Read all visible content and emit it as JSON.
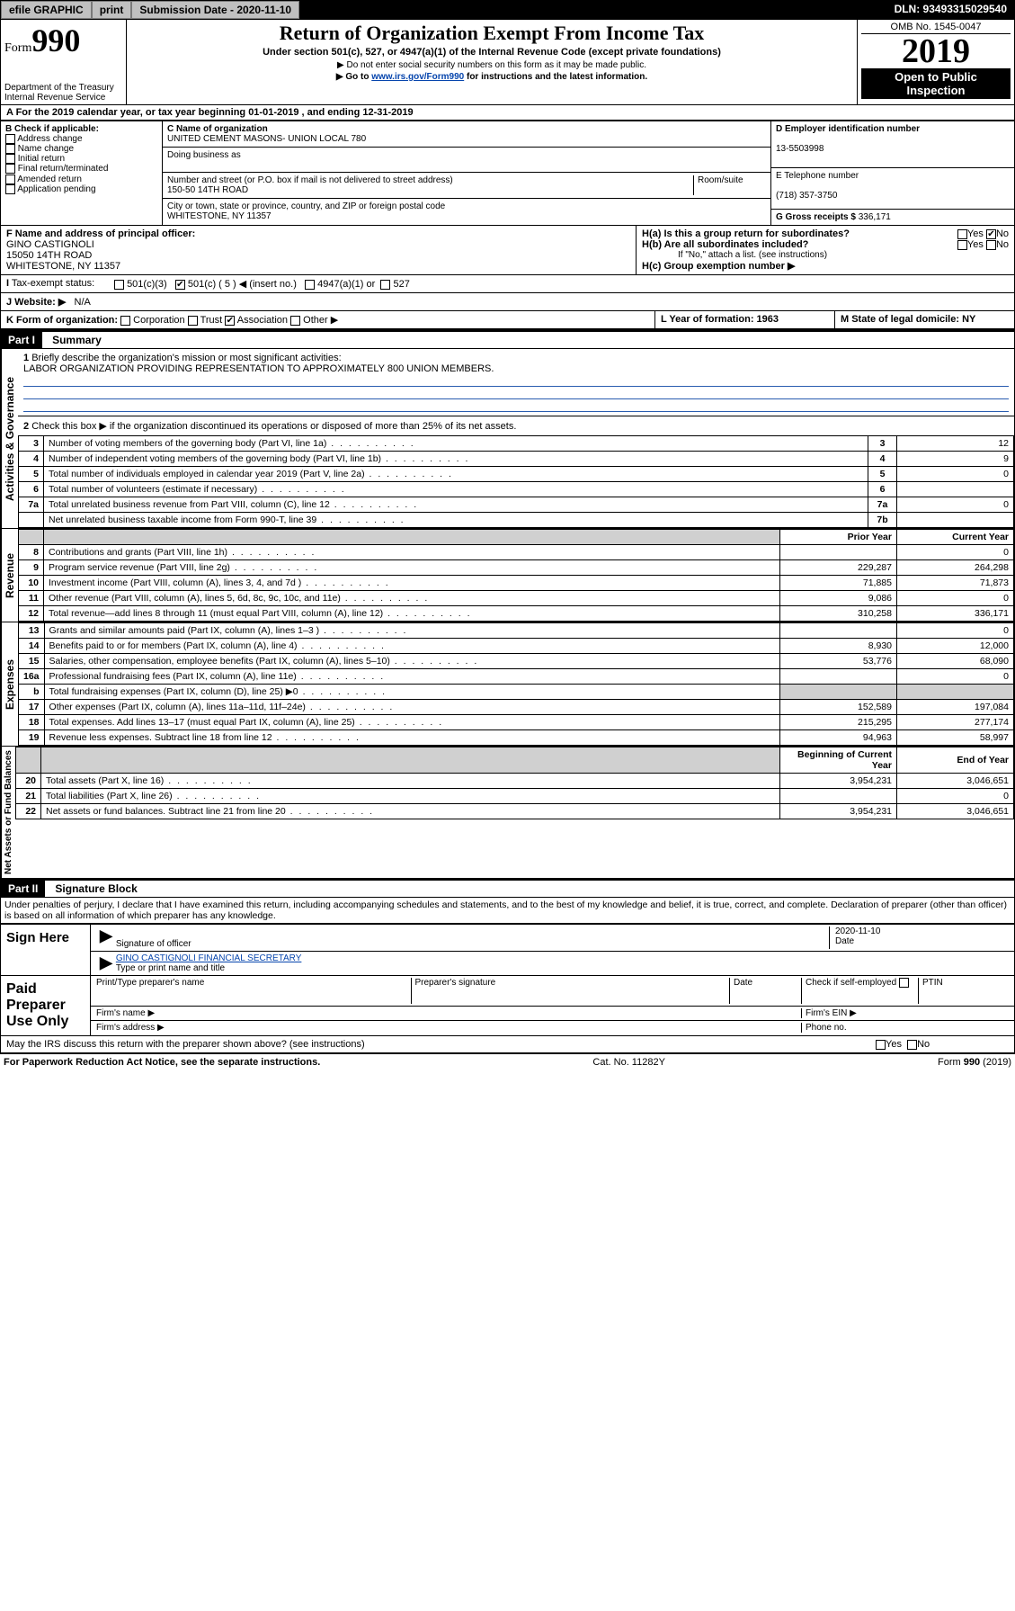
{
  "topbar": {
    "efile": "efile GRAPHIC",
    "print": "print",
    "submission_label": "Submission Date - 2020-11-10",
    "dln": "DLN: 93493315029540"
  },
  "header": {
    "form_prefix": "Form",
    "form_number": "990",
    "title": "Return of Organization Exempt From Income Tax",
    "subtitle": "Under section 501(c), 527, or 4947(a)(1) of the Internal Revenue Code (except private foundations)",
    "note1": "▶ Do not enter social security numbers on this form as it may be made public.",
    "note2_pre": "▶ Go to ",
    "note2_link": "www.irs.gov/Form990",
    "note2_post": " for instructions and the latest information.",
    "dept1": "Department of the Treasury",
    "dept2": "Internal Revenue Service",
    "omb": "OMB No. 1545-0047",
    "year": "2019",
    "open1": "Open to Public",
    "open2": "Inspection"
  },
  "bandA": "A   For the 2019 calendar year, or tax year beginning 01-01-2019     , and ending 12-31-2019",
  "B": {
    "hdr": "B Check if applicable:",
    "items": [
      "Address change",
      "Name change",
      "Initial return",
      "Final return/terminated",
      "Amended return",
      "Application pending"
    ]
  },
  "C": {
    "name_lbl": "C Name of organization",
    "name": "UNITED CEMENT MASONS- UNION LOCAL 780",
    "dba_lbl": "Doing business as",
    "addr_lbl": "Number and street (or P.O. box if mail is not delivered to street address)",
    "room_lbl": "Room/suite",
    "addr": "150-50 14TH ROAD",
    "city_lbl": "City or town, state or province, country, and ZIP or foreign postal code",
    "city": "WHITESTONE, NY  11357"
  },
  "D": {
    "lbl": "D Employer identification number",
    "val": "13-5503998"
  },
  "E": {
    "lbl": "E Telephone number",
    "val": "(718) 357-3750"
  },
  "G": {
    "lbl": "G Gross receipts $",
    "val": "336,171"
  },
  "F": {
    "lbl": "F  Name and address of principal officer:",
    "name": "GINO CASTIGNOLI",
    "addr1": "15050 14TH ROAD",
    "addr2": "WHITESTONE, NY  11357"
  },
  "H": {
    "a": "H(a)  Is this a group return for subordinates?",
    "b": "H(b)  Are all subordinates included?",
    "b_note": "If \"No,\" attach a list. (see instructions)",
    "c": "H(c)  Group exemption number ▶",
    "yes": "Yes",
    "no": "No"
  },
  "I": {
    "lbl": "Tax-exempt status:",
    "a": "501(c)(3)",
    "b": "501(c) ( 5 ) ◀ (insert no.)",
    "c": "4947(a)(1) or",
    "d": "527"
  },
  "J": {
    "lbl": "J    Website: ▶",
    "val": "N/A"
  },
  "K": {
    "lbl": "K Form of organization:",
    "opts": [
      "Corporation",
      "Trust",
      "Association",
      "Other ▶"
    ],
    "checked_idx": 2,
    "L": "L Year of formation: 1963",
    "M": "M State of legal domicile: NY"
  },
  "part1": {
    "hdr": "Part I",
    "title": "Summary",
    "tab_gov": "Activities & Governance",
    "tab_rev": "Revenue",
    "tab_exp": "Expenses",
    "tab_net": "Net Assets or Fund Balances",
    "line1_lbl": "Briefly describe the organization's mission or most significant activities:",
    "line1_val": "LABOR ORGANIZATION PROVIDING REPRESENTATION TO APPROXIMATELY 800 UNION MEMBERS.",
    "line2": "Check this box ▶   if the organization discontinued its operations or disposed of more than 25% of its net assets.",
    "rows_gov": [
      {
        "n": "3",
        "d": "Number of voting members of the governing body (Part VI, line 1a)",
        "b": "3",
        "v": "12"
      },
      {
        "n": "4",
        "d": "Number of independent voting members of the governing body (Part VI, line 1b)",
        "b": "4",
        "v": "9"
      },
      {
        "n": "5",
        "d": "Total number of individuals employed in calendar year 2019 (Part V, line 2a)",
        "b": "5",
        "v": "0"
      },
      {
        "n": "6",
        "d": "Total number of volunteers (estimate if necessary)",
        "b": "6",
        "v": ""
      },
      {
        "n": "7a",
        "d": "Total unrelated business revenue from Part VIII, column (C), line 12",
        "b": "7a",
        "v": "0"
      },
      {
        "n": "",
        "d": "Net unrelated business taxable income from Form 990-T, line 39",
        "b": "7b",
        "v": ""
      }
    ],
    "col_prior": "Prior Year",
    "col_curr": "Current Year",
    "rows_rev": [
      {
        "n": "8",
        "d": "Contributions and grants (Part VIII, line 1h)",
        "p": "",
        "c": "0"
      },
      {
        "n": "9",
        "d": "Program service revenue (Part VIII, line 2g)",
        "p": "229,287",
        "c": "264,298"
      },
      {
        "n": "10",
        "d": "Investment income (Part VIII, column (A), lines 3, 4, and 7d )",
        "p": "71,885",
        "c": "71,873"
      },
      {
        "n": "11",
        "d": "Other revenue (Part VIII, column (A), lines 5, 6d, 8c, 9c, 10c, and 11e)",
        "p": "9,086",
        "c": "0"
      },
      {
        "n": "12",
        "d": "Total revenue—add lines 8 through 11 (must equal Part VIII, column (A), line 12)",
        "p": "310,258",
        "c": "336,171"
      }
    ],
    "rows_exp": [
      {
        "n": "13",
        "d": "Grants and similar amounts paid (Part IX, column (A), lines 1–3 )",
        "p": "",
        "c": "0"
      },
      {
        "n": "14",
        "d": "Benefits paid to or for members (Part IX, column (A), line 4)",
        "p": "8,930",
        "c": "12,000"
      },
      {
        "n": "15",
        "d": "Salaries, other compensation, employee benefits (Part IX, column (A), lines 5–10)",
        "p": "53,776",
        "c": "68,090"
      },
      {
        "n": "16a",
        "d": "Professional fundraising fees (Part IX, column (A), line 11e)",
        "p": "",
        "c": "0"
      },
      {
        "n": "b",
        "d": "Total fundraising expenses (Part IX, column (D), line 25) ▶0",
        "p": "shade",
        "c": "shade"
      },
      {
        "n": "17",
        "d": "Other expenses (Part IX, column (A), lines 11a–11d, 11f–24e)",
        "p": "152,589",
        "c": "197,084"
      },
      {
        "n": "18",
        "d": "Total expenses. Add lines 13–17 (must equal Part IX, column (A), line 25)",
        "p": "215,295",
        "c": "277,174"
      },
      {
        "n": "19",
        "d": "Revenue less expenses. Subtract line 18 from line 12",
        "p": "94,963",
        "c": "58,997"
      }
    ],
    "col_beg": "Beginning of Current Year",
    "col_end": "End of Year",
    "rows_net": [
      {
        "n": "20",
        "d": "Total assets (Part X, line 16)",
        "p": "3,954,231",
        "c": "3,046,651"
      },
      {
        "n": "21",
        "d": "Total liabilities (Part X, line 26)",
        "p": "",
        "c": "0"
      },
      {
        "n": "22",
        "d": "Net assets or fund balances. Subtract line 21 from line 20",
        "p": "3,954,231",
        "c": "3,046,651"
      }
    ]
  },
  "part2": {
    "hdr": "Part II",
    "title": "Signature Block",
    "perjury": "Under penalties of perjury, I declare that I have examined this return, including accompanying schedules and statements, and to the best of my knowledge and belief, it is true, correct, and complete. Declaration of preparer (other than officer) is based on all information of which preparer has any knowledge.",
    "sign_here": "Sign Here",
    "sig_officer": "Signature of officer",
    "sig_date": "2020-11-10",
    "date_lbl": "Date",
    "officer_name": "GINO CASTIGNOLI FINANCIAL SECRETARY",
    "type_name": "Type or print name and title",
    "paid": "Paid Preparer Use Only",
    "pp_name": "Print/Type preparer's name",
    "pp_sig": "Preparer's signature",
    "pp_date": "Date",
    "pp_check": "Check   if self-employed",
    "pp_ptin": "PTIN",
    "firm_name": "Firm's name  ▶",
    "firm_ein": "Firm's EIN ▶",
    "firm_addr": "Firm's address ▶",
    "phone": "Phone no.",
    "discuss": "May the IRS discuss this return with the preparer shown above? (see instructions)",
    "yes": "Yes",
    "no": "No"
  },
  "footer": {
    "left": "For Paperwork Reduction Act Notice, see the separate instructions.",
    "mid": "Cat. No. 11282Y",
    "right": "Form 990 (2019)"
  },
  "colors": {
    "link": "#0645ad",
    "rule": "#2a5db0"
  }
}
